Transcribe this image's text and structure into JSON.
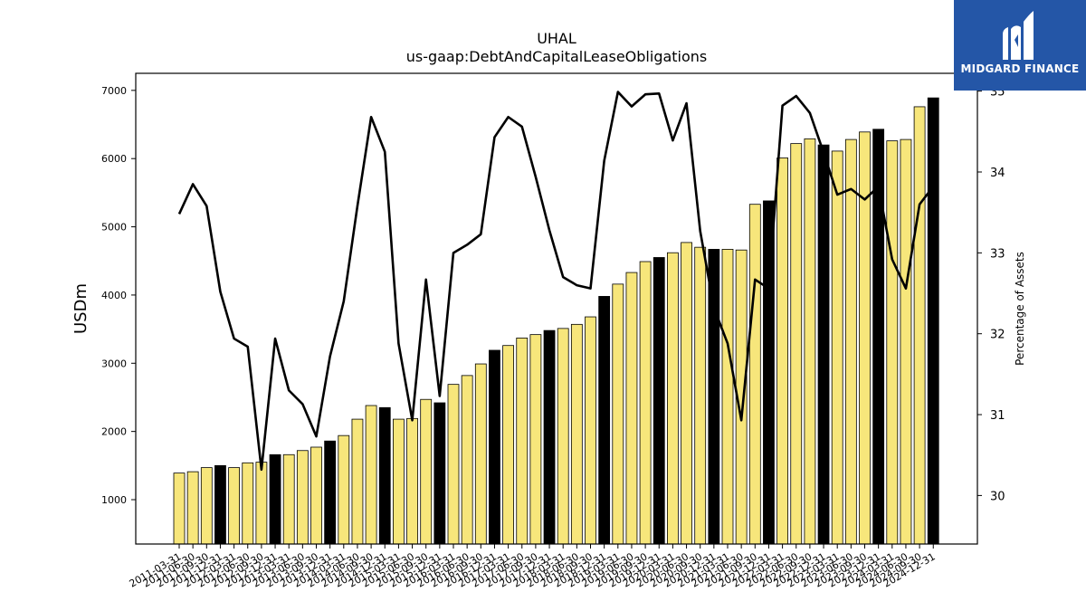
{
  "chart_data": {
    "type": "bar+line",
    "title": "UHAL",
    "subtitle": "us-gaap:DebtAndCapitalLeaseObligations",
    "ylabel_left": "USDm",
    "ylabel_right": "Percentage of Assets",
    "ylim_left": [
      350,
      7250
    ],
    "yticks_left": [
      1000,
      2000,
      3000,
      4000,
      5000,
      6000,
      7000
    ],
    "ylim_right": [
      29.4,
      35.22
    ],
    "yticks_right": [
      30,
      31,
      32,
      33,
      34,
      35
    ],
    "categories": [
      "2011-03-31",
      "2011-06-30",
      "2011-09-30",
      "2011-12-31",
      "2012-03-31",
      "2012-06-30",
      "2012-09-30",
      "2012-12-31",
      "2013-03-31",
      "2013-06-30",
      "2013-09-30",
      "2013-12-31",
      "2014-03-31",
      "2014-06-30",
      "2014-09-30",
      "2014-12-31",
      "2015-03-31",
      "2015-06-30",
      "2015-09-30",
      "2015-12-31",
      "2016-03-31",
      "2016-06-30",
      "2016-09-30",
      "2016-12-31",
      "2017-03-31",
      "2017-06-30",
      "2017-09-30",
      "2017-12-31",
      "2018-03-31",
      "2018-06-30",
      "2018-09-30",
      "2018-12-31",
      "2019-03-31",
      "2019-06-30",
      "2019-09-30",
      "2019-12-31",
      "2020-03-31",
      "2020-06-30",
      "2020-09-30",
      "2020-12-31",
      "2021-03-31",
      "2021-06-30",
      "2021-09-30",
      "2021-12-31",
      "2022-03-31",
      "2022-06-30",
      "2022-09-30",
      "2022-12-31",
      "2023-03-31",
      "2023-06-30",
      "2023-09-30",
      "2023-12-31",
      "2024-03-31",
      "2024-06-30",
      "2024-09-30",
      "2024-12-31"
    ],
    "series": [
      {
        "name": "",
        "type": "bar",
        "values": [
          1390,
          1410,
          1470,
          1500,
          1470,
          1540,
          1550,
          1660,
          1660,
          1720,
          1770,
          1860,
          1940,
          2180,
          2380,
          2350,
          2180,
          2190,
          2470,
          2420,
          2690,
          2820,
          2990,
          3190,
          3260,
          3370,
          3420,
          3480,
          3510,
          3570,
          3680,
          3980,
          4160,
          4330,
          4490,
          4550,
          4620,
          4770,
          4700,
          4670,
          4670,
          4660,
          5330,
          5380,
          6010,
          6220,
          6290,
          6200,
          6110,
          6280,
          6390,
          6430,
          6260,
          6280,
          6760,
          6890
        ],
        "highlight_indices": [
          3,
          7,
          11,
          15,
          19,
          23,
          27,
          31,
          35,
          39,
          43,
          47,
          51,
          55
        ],
        "colors": {
          "normal": "#f7e67b",
          "highlight": "#000000",
          "edge": "#000000"
        }
      },
      {
        "name": "",
        "type": "line",
        "axis": "right",
        "color": "#000000",
        "values": [
          33.48,
          33.85,
          33.58,
          32.52,
          31.94,
          31.84,
          30.32,
          31.94,
          31.3,
          31.13,
          30.73,
          31.72,
          32.4,
          33.58,
          34.68,
          34.25,
          31.88,
          30.93,
          32.67,
          31.23,
          33.0,
          33.1,
          33.23,
          34.43,
          34.68,
          34.56,
          33.94,
          33.28,
          32.7,
          32.6,
          32.56,
          34.14,
          34.99,
          34.81,
          34.96,
          34.97,
          34.39,
          34.85,
          33.27,
          32.32,
          31.88,
          30.93,
          32.67,
          32.56,
          34.82,
          34.94,
          34.73,
          34.24,
          33.72,
          33.79,
          33.66,
          33.82,
          32.92,
          32.56,
          33.6,
          33.82
        ]
      }
    ],
    "grid": false,
    "legend": "none"
  },
  "logo": {
    "text": "MIDGARD FINANCE",
    "background": "#2456a7",
    "icon": "midgard-m-logo-icon"
  }
}
